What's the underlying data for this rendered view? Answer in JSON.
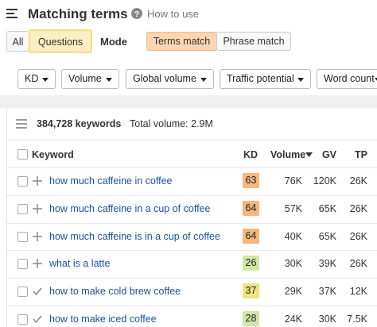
{
  "header": {
    "title": "Matching terms",
    "help": "How to use"
  },
  "tabs": [
    "All",
    "Questions"
  ],
  "mode": {
    "label": "Mode",
    "options": [
      "Terms match",
      "Phrase match"
    ]
  },
  "filters": [
    "KD",
    "Volume",
    "Global volume",
    "Traffic potential",
    "Word count"
  ],
  "summary": {
    "count": "384,728 keywords",
    "total": "Total volume: 2.9M"
  },
  "table": {
    "columns": [
      "Keyword",
      "KD",
      "Volume",
      "GV",
      "TP"
    ],
    "rows": [
      {
        "keyword": "how much caffeine in coffee",
        "kd": 63,
        "kd_color": "#f7b77a",
        "volume": "76K",
        "gv": "120K",
        "tp": "26K",
        "added": false
      },
      {
        "keyword": "how much caffeine in a cup of coffee",
        "kd": 64,
        "kd_color": "#f7b77a",
        "volume": "57K",
        "gv": "65K",
        "tp": "26K",
        "added": false
      },
      {
        "keyword": "how much caffeine is in a cup of coffee",
        "kd": 64,
        "kd_color": "#f7b77a",
        "volume": "40K",
        "gv": "65K",
        "tp": "26K",
        "added": false
      },
      {
        "keyword": "what is a latte",
        "kd": 26,
        "kd_color": "#d2e6a4",
        "volume": "30K",
        "gv": "39K",
        "tp": "26K",
        "added": false
      },
      {
        "keyword": "how to make cold brew coffee",
        "kd": 37,
        "kd_color": "#ede47f",
        "volume": "29K",
        "gv": "37K",
        "tp": "12K",
        "added": true
      },
      {
        "keyword": "how to make iced coffee",
        "kd": 28,
        "kd_color": "#d2e6a4",
        "volume": "24K",
        "gv": "30K",
        "tp": "7.5K",
        "added": true
      }
    ]
  }
}
